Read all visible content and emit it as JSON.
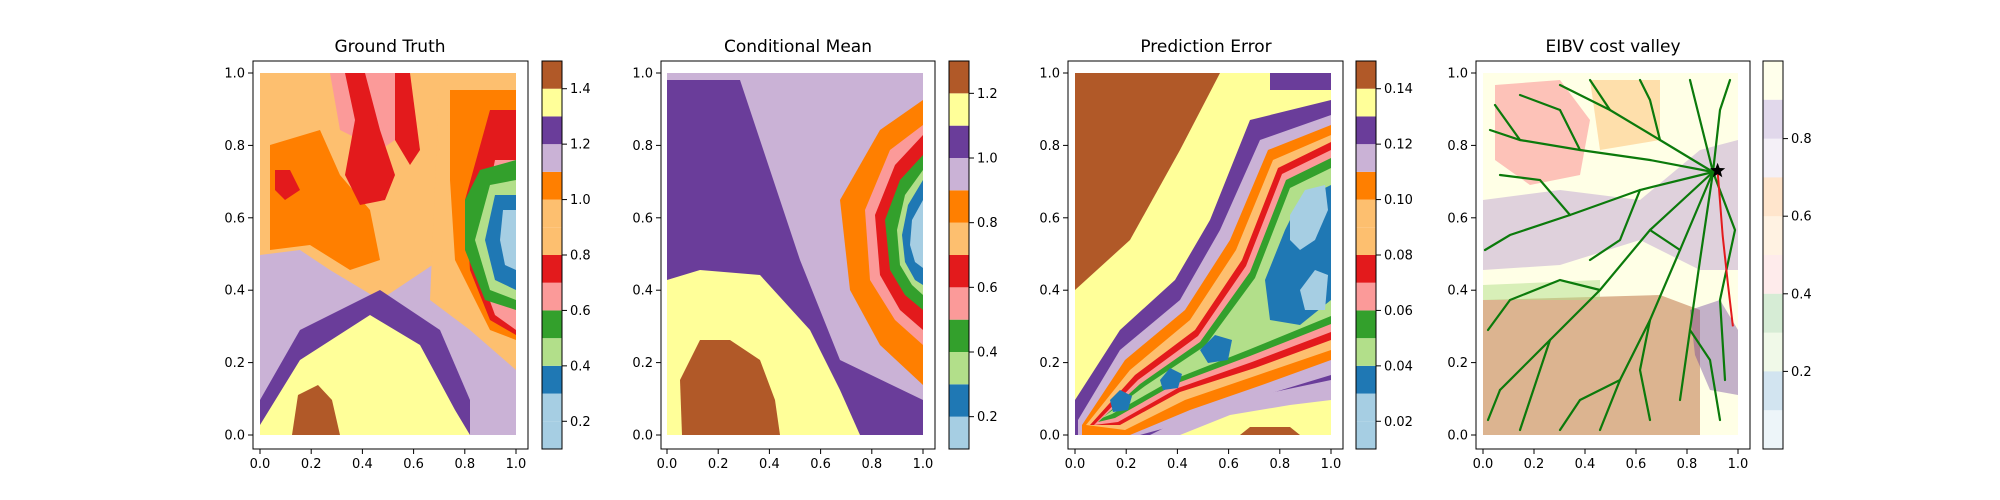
{
  "chart_data": [
    {
      "type": "contour",
      "title": "Ground Truth",
      "xlim": [
        0.0,
        1.0
      ],
      "ylim": [
        0.0,
        1.0
      ],
      "xticks": [
        "0.0",
        "0.2",
        "0.4",
        "0.6",
        "0.8",
        "1.0"
      ],
      "yticks": [
        "0.0",
        "0.2",
        "0.4",
        "0.6",
        "0.8",
        "1.0"
      ],
      "colorbar": {
        "levels": [
          0.1,
          0.2,
          0.3,
          0.4,
          0.5,
          0.6,
          0.7,
          0.8,
          0.9,
          1.0,
          1.1,
          1.2,
          1.3,
          1.4,
          1.5
        ],
        "ticks": [
          0.2,
          0.4,
          0.6,
          0.8,
          1.0,
          1.2,
          1.4
        ],
        "tick_labels": [
          "0.2",
          "0.4",
          "0.6",
          "0.8",
          "1.0",
          "1.2",
          "1.4"
        ],
        "colormap": "Paired"
      }
    },
    {
      "type": "contour",
      "title": "Conditional Mean",
      "xlim": [
        0.0,
        1.0
      ],
      "ylim": [
        0.0,
        1.0
      ],
      "xticks": [
        "0.0",
        "0.2",
        "0.4",
        "0.6",
        "0.8",
        "1.0"
      ],
      "yticks": [
        "0.0",
        "0.2",
        "0.4",
        "0.6",
        "0.8",
        "1.0"
      ],
      "colorbar": {
        "levels": [
          0.1,
          0.2,
          0.3,
          0.4,
          0.5,
          0.6,
          0.7,
          0.8,
          0.9,
          1.0,
          1.1,
          1.2,
          1.3
        ],
        "ticks": [
          0.2,
          0.4,
          0.6,
          0.8,
          1.0,
          1.2
        ],
        "tick_labels": [
          "0.2",
          "0.4",
          "0.6",
          "0.8",
          "1.0",
          "1.2"
        ],
        "colormap": "Paired"
      }
    },
    {
      "type": "contour",
      "title": "Prediction Error",
      "xlim": [
        0.0,
        1.0
      ],
      "ylim": [
        0.0,
        1.0
      ],
      "xticks": [
        "0.0",
        "0.2",
        "0.4",
        "0.6",
        "0.8",
        "1.0"
      ],
      "yticks": [
        "0.0",
        "0.2",
        "0.4",
        "0.6",
        "0.8",
        "1.0"
      ],
      "colorbar": {
        "levels": [
          0.01,
          0.02,
          0.03,
          0.04,
          0.05,
          0.06,
          0.07,
          0.08,
          0.09,
          0.1,
          0.11,
          0.12,
          0.13,
          0.14,
          0.15
        ],
        "ticks": [
          0.02,
          0.04,
          0.06,
          0.08,
          0.1,
          0.12,
          0.14
        ],
        "tick_labels": [
          "0.02",
          "0.04",
          "0.06",
          "0.08",
          "0.10",
          "0.12",
          "0.14"
        ],
        "colormap": "Paired"
      }
    },
    {
      "type": "contour",
      "title": "EIBV cost valley",
      "xlim": [
        0.0,
        1.0
      ],
      "ylim": [
        0.0,
        1.0
      ],
      "xticks": [
        "0.0",
        "0.2",
        "0.4",
        "0.6",
        "0.8",
        "1.0"
      ],
      "yticks": [
        "0.0",
        "0.2",
        "0.4",
        "0.6",
        "0.8",
        "1.0"
      ],
      "colorbar": {
        "levels": [
          0.0,
          0.1,
          0.2,
          0.3,
          0.4,
          0.5,
          0.6,
          0.7,
          0.8,
          0.9,
          1.0
        ],
        "ticks": [
          0.2,
          0.4,
          0.6,
          0.8
        ],
        "tick_labels": [
          "0.2",
          "0.4",
          "0.6",
          "0.8"
        ],
        "colormap": "Paired",
        "alpha": 0.2
      },
      "overlay": {
        "tree_color": "#0b7a0b",
        "path_color": "#e31a1c",
        "start_marker": "star",
        "start_point": [
          0.92,
          0.73
        ],
        "path": [
          [
            0.92,
            0.73
          ],
          [
            0.94,
            0.55
          ],
          [
            0.96,
            0.42
          ],
          [
            0.98,
            0.3
          ]
        ]
      }
    }
  ]
}
